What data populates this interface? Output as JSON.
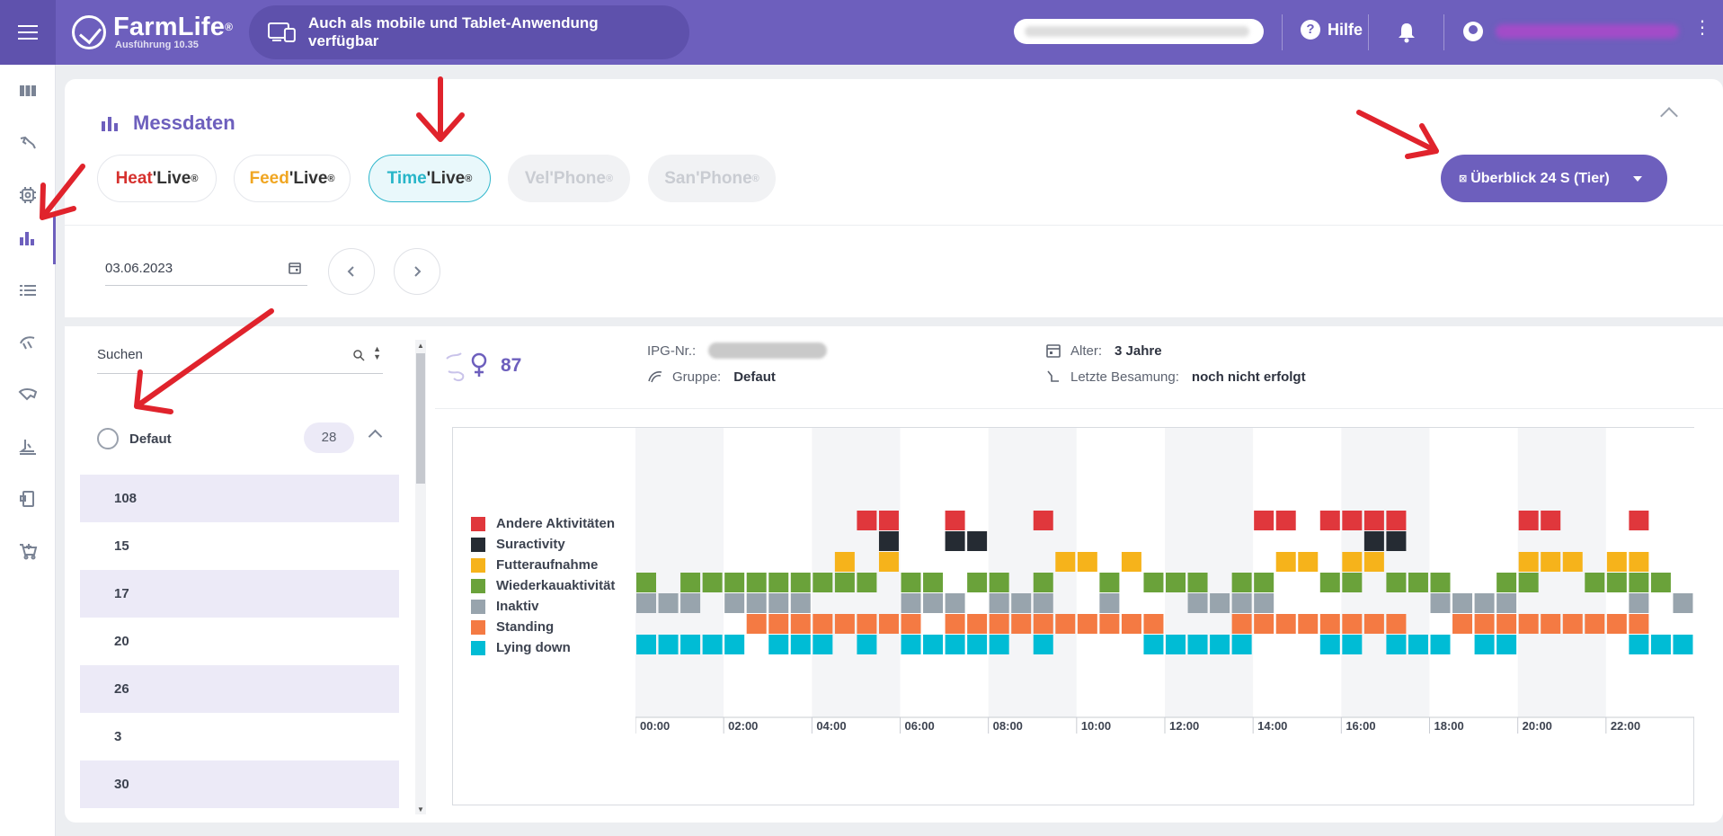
{
  "topbar": {
    "brand": "FarmLife",
    "brand_mark": "®",
    "version": "Ausführung 10.35",
    "mobile_notice": "Auch als mobile und Tablet-Anwendung verfügbar",
    "help_label": "Hilfe"
  },
  "sidebar": {
    "items": [
      "dashboard-icon",
      "cow-head-icon",
      "chip-icon",
      "bar-chart-icon",
      "list-icon",
      "feeder-icon",
      "udder-icon",
      "milking-icon",
      "device-icon",
      "cart-icon"
    ],
    "active_index": 3
  },
  "section": {
    "title": "Messdaten",
    "live_tabs": [
      {
        "part_a": "Heat",
        "part_b": "Live",
        "mark": "®",
        "state": "normal",
        "color": "#d6312e"
      },
      {
        "part_a": "Feed",
        "part_b": "Live",
        "mark": "®",
        "state": "normal",
        "color": "#f0a622"
      },
      {
        "part_a": "Time",
        "part_b": "Live",
        "mark": "®",
        "state": "active",
        "color": "#27b5c8"
      },
      {
        "part_a": "Vel",
        "part_b": "Phone",
        "mark": "®",
        "state": "disabled",
        "color": "#c9ccd2"
      },
      {
        "part_a": "San",
        "part_b": "Phone",
        "mark": "®",
        "state": "disabled",
        "color": "#c9ccd2"
      }
    ],
    "view_select": "Überblick 24 S (Tier)",
    "view_select_icon": "⊠"
  },
  "date": {
    "value": "03.06.2023"
  },
  "list": {
    "search_label": "Suchen",
    "group": {
      "name": "Defaut",
      "count": "28"
    },
    "animals": [
      "108",
      "15",
      "17",
      "20",
      "26",
      "3",
      "30"
    ]
  },
  "animal": {
    "number": "87",
    "ipg_label": "IPG-Nr.:",
    "group_label": "Gruppe:",
    "group_value": "Defaut",
    "age_label": "Alter:",
    "age_value": "3 Jahre",
    "insem_label": "Letzte Besamung:",
    "insem_value": "noch nicht erfolgt"
  },
  "chart_data": {
    "type": "heatmap",
    "title": "",
    "x_ticks": [
      "00:00",
      "02:00",
      "04:00",
      "06:00",
      "08:00",
      "10:00",
      "12:00",
      "14:00",
      "16:00",
      "18:00",
      "20:00",
      "22:00"
    ],
    "slots_per_day": 48,
    "slot_minutes": 30,
    "series": [
      {
        "name": "Andere Aktivitäten",
        "color": "#e0373c",
        "slots": [
          10,
          11,
          14,
          18,
          28,
          29,
          31,
          32,
          33,
          34,
          40,
          41,
          45
        ]
      },
      {
        "name": "Suractivity",
        "color": "#252b33",
        "slots": [
          11,
          14,
          15,
          33,
          34
        ]
      },
      {
        "name": "Futteraufnahme",
        "color": "#f6b31b",
        "slots": [
          9,
          11,
          19,
          20,
          22,
          29,
          30,
          32,
          33,
          40,
          41,
          42,
          44,
          45
        ]
      },
      {
        "name": "Wiederkauaktivität",
        "color": "#6aa23a",
        "slots": [
          0,
          2,
          3,
          4,
          5,
          6,
          7,
          8,
          9,
          10,
          12,
          13,
          15,
          16,
          18,
          21,
          23,
          24,
          25,
          27,
          28,
          31,
          32,
          34,
          35,
          36,
          39,
          40,
          43,
          44,
          45,
          46
        ]
      },
      {
        "name": "Inaktiv",
        "color": "#98a4ad",
        "slots": [
          0,
          1,
          2,
          4,
          5,
          6,
          7,
          12,
          13,
          14,
          16,
          17,
          18,
          21,
          25,
          26,
          27,
          28,
          36,
          37,
          38,
          39,
          45,
          47
        ]
      },
      {
        "name": "Standing",
        "color": "#f47a43",
        "slots": [
          5,
          6,
          7,
          8,
          9,
          10,
          11,
          12,
          14,
          15,
          16,
          17,
          18,
          19,
          20,
          21,
          22,
          23,
          27,
          28,
          29,
          30,
          31,
          32,
          33,
          34,
          37,
          38,
          39,
          40,
          41,
          42,
          43,
          44,
          45
        ]
      },
      {
        "name": "Lying down",
        "color": "#00bcd5",
        "slots": [
          0,
          1,
          2,
          3,
          4,
          6,
          7,
          8,
          10,
          12,
          13,
          14,
          15,
          16,
          18,
          23,
          24,
          25,
          26,
          27,
          31,
          32,
          34,
          35,
          36,
          38,
          39,
          45,
          46,
          47
        ]
      }
    ]
  },
  "colors": {
    "primary": "#6d5fbd",
    "annotation_arrow": "#e0232c"
  }
}
